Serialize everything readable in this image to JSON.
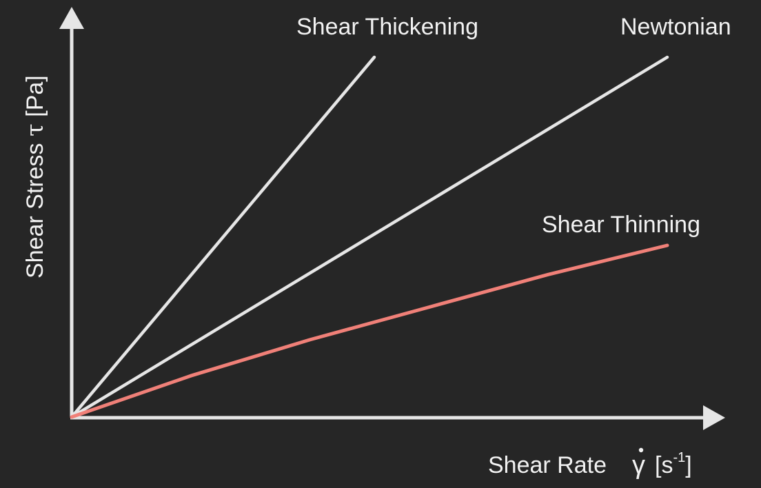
{
  "chart_data": {
    "type": "line",
    "title": "",
    "xlabel": {
      "text": "Shear Rate",
      "symbol": "γ",
      "unit_open": "[s",
      "unit_sup": "-1",
      "unit_close": "]"
    },
    "ylabel": {
      "text": "Shear Stress",
      "symbol": "τ",
      "unit": "[Pa]"
    },
    "axis_ticks": "none",
    "grid": false,
    "series": [
      {
        "name": "Shear Thickening",
        "color": "#e6e6e6",
        "x": [
          0,
          1
        ],
        "y": [
          0,
          1
        ]
      },
      {
        "name": "Newtonian",
        "color": "#e6e6e6",
        "x": [
          0,
          1
        ],
        "y": [
          0,
          1
        ]
      },
      {
        "name": "Shear Thinning",
        "color": "#f08078",
        "x": [
          0,
          0.2,
          0.4,
          0.6,
          0.8,
          1
        ],
        "y": [
          0,
          0.24,
          0.45,
          0.64,
          0.83,
          1
        ]
      }
    ],
    "colors": {
      "background": "#262626",
      "axis": "#e6e6e6",
      "text": "#f2f2f2"
    }
  }
}
